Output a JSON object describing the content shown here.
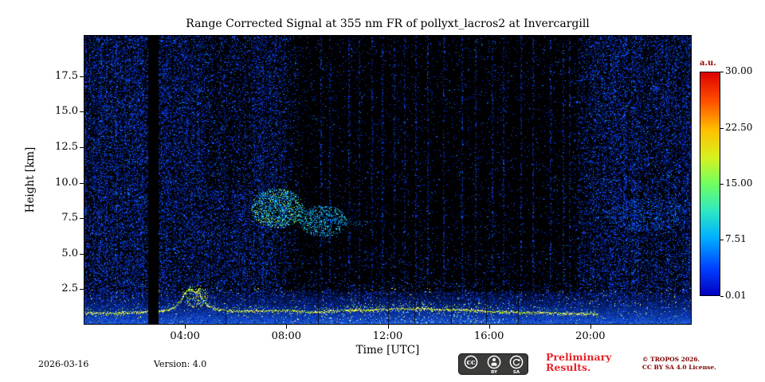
{
  "chart_data": {
    "type": "heatmap",
    "title": "Range Corrected Signal at 355 nm FR of pollyxt_lacros2 at Invercargill",
    "xlabel": "Time [UTC]",
    "ylabel": "Height [km]",
    "x_range_hours": [
      0,
      24
    ],
    "x_ticks": [
      "04:00",
      "08:00",
      "12:00",
      "16:00",
      "20:00"
    ],
    "x_tick_hours": [
      4,
      8,
      12,
      16,
      20
    ],
    "y_range_km": [
      0,
      20.4
    ],
    "y_tick_values": [
      2.5,
      5.0,
      7.5,
      10.0,
      12.5,
      15.0,
      17.5
    ],
    "y_tick_labels": [
      "2.5",
      "5.0",
      "7.5",
      "10.0",
      "12.5",
      "15.0",
      "17.5"
    ],
    "grid": false,
    "colorbar": {
      "label": "a.u.",
      "label_color": "#990000",
      "ticks": [
        "30.00",
        "22.50",
        "15.00",
        "7.51",
        "0.01"
      ],
      "tick_values": [
        30.0,
        22.5,
        15.0,
        7.51,
        0.01
      ],
      "range": [
        0.01,
        30.0
      ],
      "colormap": "jet",
      "css_stops": [
        "#0000bf 0%",
        "#0040ff 12%",
        "#00b0ff 26%",
        "#30e8c0 38%",
        "#70ff60 50%",
        "#d8f020 62%",
        "#ffc000 74%",
        "#ff5000 87%",
        "#dd0000 100%"
      ]
    },
    "features": {
      "background": "#000000",
      "data_gap_hours": [
        2.55,
        2.95
      ],
      "surface_band_top_km": 2.3,
      "palette": {
        "blues": [
          "#001878",
          "#0028b8",
          "#0a3cf0",
          "#2054ff",
          "#0b2fa0"
        ],
        "bright": [
          "#55d8ff",
          "#9df2ff",
          "#cfff7a",
          "#ffec6e"
        ]
      },
      "aerosol_line": {
        "end_hour": 20.3,
        "colors": [
          "#ffee40",
          "#c8f000",
          "#8cec30",
          "#fff9a0"
        ],
        "points": [
          [
            0,
            0.85
          ],
          [
            1,
            0.8
          ],
          [
            2,
            0.88
          ],
          [
            3,
            0.95
          ],
          [
            3.6,
            1.2
          ],
          [
            4.1,
            2.5
          ],
          [
            4.5,
            2.3
          ],
          [
            4.9,
            1.3
          ],
          [
            5.5,
            1.0
          ],
          [
            6.5,
            0.95
          ],
          [
            8,
            1.0
          ],
          [
            9,
            0.88
          ],
          [
            10,
            1.0
          ],
          [
            11,
            1.05
          ],
          [
            12,
            1.1
          ],
          [
            13,
            1.15
          ],
          [
            14,
            1.1
          ],
          [
            15,
            1.05
          ],
          [
            16,
            0.95
          ],
          [
            17,
            0.9
          ],
          [
            18,
            0.85
          ],
          [
            19,
            0.8
          ],
          [
            20.3,
            0.78
          ]
        ]
      },
      "clouds": [
        {
          "h0": 6.6,
          "h1": 8.7,
          "km0": 6.8,
          "km1": 9.6,
          "density": 0.38,
          "colors": [
            "#00c8ff",
            "#40e8d0",
            "#a8f040",
            "#1080ff"
          ]
        },
        {
          "h0": 8.5,
          "h1": 10.4,
          "km0": 6.2,
          "km1": 8.4,
          "density": 0.3,
          "colors": [
            "#00c8ff",
            "#40e8d0",
            "#1080ff"
          ]
        },
        {
          "h0": 3.9,
          "h1": 4.9,
          "km0": 1.2,
          "km1": 2.8,
          "density": 0.25,
          "colors": [
            "#ffe840",
            "#a0e830",
            "#60d0ff"
          ]
        },
        {
          "h0": 20.6,
          "h1": 23.9,
          "km0": 6.6,
          "km1": 8.9,
          "density": 0.16,
          "colors": [
            "#0848ff",
            "#0030d0",
            "#00a0ff"
          ]
        }
      ],
      "faint_layer": {
        "density": 0.35,
        "colors": [
          "#1560e0",
          "#00a0ff"
        ],
        "points": [
          [
            6.2,
            10.3
          ],
          [
            7.0,
            9.2
          ],
          [
            8.0,
            8.4
          ],
          [
            9.0,
            7.8
          ],
          [
            10.0,
            7.4
          ],
          [
            11.2,
            7.1
          ]
        ]
      },
      "blue_streak_hours": [
        7.9,
        9.35,
        9.7,
        10.45,
        10.85,
        11.35,
        11.75,
        12.25,
        12.65,
        13.1,
        13.55,
        14.2,
        14.9,
        15.45,
        16.1,
        16.55,
        17.25,
        17.7,
        18.4,
        18.9,
        19.15
      ],
      "dark_streak_hours": [
        5.6,
        9.25,
        12.0,
        13.05,
        14.5,
        15.9,
        17.15
      ]
    }
  },
  "footer": {
    "date": "2026-03-16",
    "version": "Version: 4.0",
    "preliminary_line1": "Preliminary",
    "preliminary_line2": "Results.",
    "preliminary_color": "#e8232a",
    "copyright_line1": "© TROPOS 2026.",
    "copyright_line2": "CC BY SA 4.0 License.",
    "copyright_color": "#7f0000"
  },
  "license": {
    "cc": "cc",
    "by": "BY",
    "sa": "SA"
  }
}
